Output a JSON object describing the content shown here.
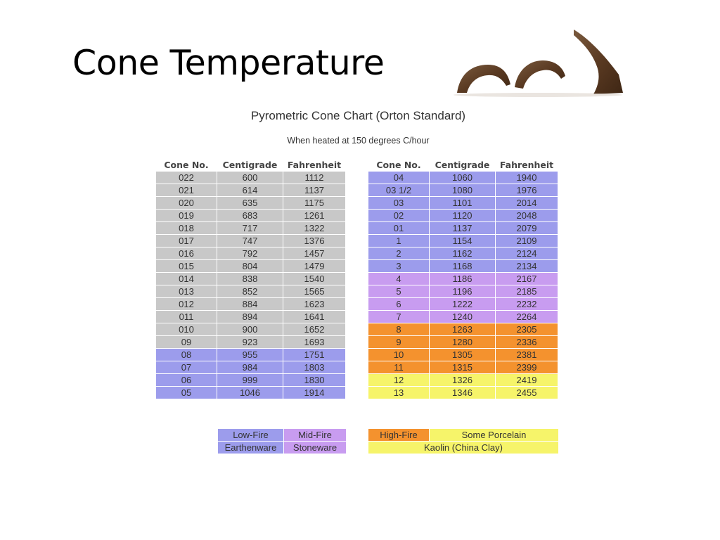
{
  "slide": {
    "title": "Cone Temperature"
  },
  "image": {
    "description_icon": "pyrometric-cones-image"
  },
  "chart": {
    "title": "Pyrometric Cone Chart (Orton Standard)",
    "subtitle": "When heated at 150 degrees C/hour",
    "headers": [
      "Cone No.",
      "Centigrade",
      "Fahrenheit"
    ],
    "left_rows": [
      {
        "cone": "022",
        "c": "600",
        "f": "1112",
        "group": "grey"
      },
      {
        "cone": "021",
        "c": "614",
        "f": "1137",
        "group": "grey"
      },
      {
        "cone": "020",
        "c": "635",
        "f": "1175",
        "group": "grey"
      },
      {
        "cone": "019",
        "c": "683",
        "f": "1261",
        "group": "grey"
      },
      {
        "cone": "018",
        "c": "717",
        "f": "1322",
        "group": "grey"
      },
      {
        "cone": "017",
        "c": "747",
        "f": "1376",
        "group": "grey"
      },
      {
        "cone": "016",
        "c": "792",
        "f": "1457",
        "group": "grey"
      },
      {
        "cone": "015",
        "c": "804",
        "f": "1479",
        "group": "grey"
      },
      {
        "cone": "014",
        "c": "838",
        "f": "1540",
        "group": "grey"
      },
      {
        "cone": "013",
        "c": "852",
        "f": "1565",
        "group": "grey"
      },
      {
        "cone": "012",
        "c": "884",
        "f": "1623",
        "group": "grey"
      },
      {
        "cone": "011",
        "c": "894",
        "f": "1641",
        "group": "grey"
      },
      {
        "cone": "010",
        "c": "900",
        "f": "1652",
        "group": "grey"
      },
      {
        "cone": "09",
        "c": "923",
        "f": "1693",
        "group": "grey"
      },
      {
        "cone": "08",
        "c": "955",
        "f": "1751",
        "group": "blue"
      },
      {
        "cone": "07",
        "c": "984",
        "f": "1803",
        "group": "blue"
      },
      {
        "cone": "06",
        "c": "999",
        "f": "1830",
        "group": "blue"
      },
      {
        "cone": "05",
        "c": "1046",
        "f": "1914",
        "group": "blue"
      }
    ],
    "right_rows": [
      {
        "cone": "04",
        "c": "1060",
        "f": "1940",
        "group": "blue"
      },
      {
        "cone": "03 1/2",
        "c": "1080",
        "f": "1976",
        "group": "blue"
      },
      {
        "cone": "03",
        "c": "1101",
        "f": "2014",
        "group": "blue"
      },
      {
        "cone": "02",
        "c": "1120",
        "f": "2048",
        "group": "blue"
      },
      {
        "cone": "01",
        "c": "1137",
        "f": "2079",
        "group": "blue"
      },
      {
        "cone": "1",
        "c": "1154",
        "f": "2109",
        "group": "blue"
      },
      {
        "cone": "2",
        "c": "1162",
        "f": "2124",
        "group": "blue"
      },
      {
        "cone": "3",
        "c": "1168",
        "f": "2134",
        "group": "blue"
      },
      {
        "cone": "4",
        "c": "1186",
        "f": "2167",
        "group": "violet"
      },
      {
        "cone": "5",
        "c": "1196",
        "f": "2185",
        "group": "violet"
      },
      {
        "cone": "6",
        "c": "1222",
        "f": "2232",
        "group": "violet"
      },
      {
        "cone": "7",
        "c": "1240",
        "f": "2264",
        "group": "violet"
      },
      {
        "cone": "8",
        "c": "1263",
        "f": "2305",
        "group": "orange"
      },
      {
        "cone": "9",
        "c": "1280",
        "f": "2336",
        "group": "orange"
      },
      {
        "cone": "10",
        "c": "1305",
        "f": "2381",
        "group": "orange"
      },
      {
        "cone": "11",
        "c": "1315",
        "f": "2399",
        "group": "orange"
      },
      {
        "cone": "12",
        "c": "1326",
        "f": "2419",
        "group": "yellow"
      },
      {
        "cone": "13",
        "c": "1346",
        "f": "2455",
        "group": "yellow"
      }
    ],
    "legend": {
      "low_fire": "Low-Fire",
      "mid_fire": "Mid-Fire",
      "earthenware": "Earthenware",
      "stoneware": "Stoneware",
      "high_fire": "High-Fire",
      "some_porcelain": "Some Porcelain",
      "kaolin": "Kaolin (China Clay)"
    },
    "colors": {
      "grey": "#c8c8c8",
      "blue": "#9c9cec",
      "violet": "#c89cf0",
      "orange": "#f4922e",
      "yellow": "#f6f46a"
    }
  }
}
